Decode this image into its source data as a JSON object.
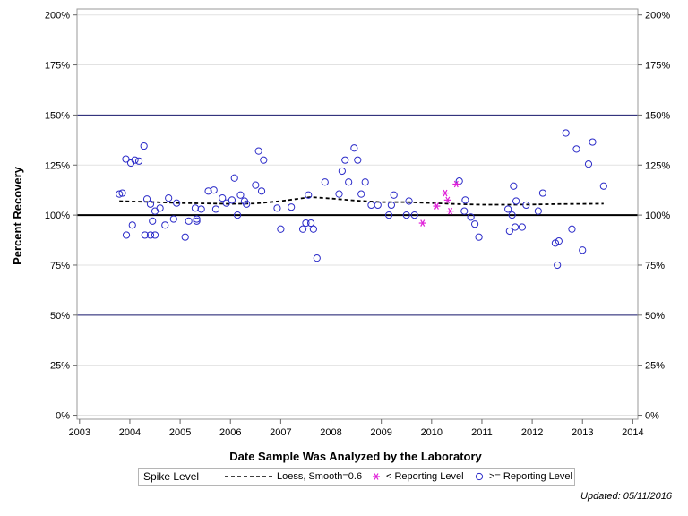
{
  "chart_data": {
    "type": "scatter",
    "title": "",
    "xlabel": "Date Sample Was Analyzed by the Laboratory",
    "ylabel": "Percent Recovery",
    "xlim": [
      2002.95,
      2014.1
    ],
    "ylim": [
      -2,
      203
    ],
    "x_ticks": [
      2003,
      2004,
      2005,
      2006,
      2007,
      2008,
      2009,
      2010,
      2011,
      2012,
      2013,
      2014
    ],
    "x_tick_labels": [
      "2003",
      "2004",
      "2005",
      "2006",
      "2007",
      "2008",
      "2009",
      "2010",
      "2011",
      "2012",
      "2013",
      "2014"
    ],
    "y_ticks": [
      0,
      25,
      50,
      75,
      100,
      125,
      150,
      175,
      200
    ],
    "y_tick_labels": [
      "0%",
      "25%",
      "50%",
      "75%",
      "100%",
      "125%",
      "150%",
      "175%",
      "200%"
    ],
    "reference_lines": {
      "spike_level": 100,
      "control_limits": [
        50,
        150
      ]
    },
    "colors": {
      "points": "#2a2ac8",
      "below_reporting": "#e020d8",
      "loess": "#000000",
      "control_line": "#1a1a6e",
      "grid": "#e2e2e2"
    },
    "series": [
      {
        "name": ">= Reporting Level",
        "marker": "circle",
        "points": [
          [
            2003.79,
            110.5
          ],
          [
            2003.85,
            111
          ],
          [
            2003.92,
            128
          ],
          [
            2003.93,
            90
          ],
          [
            2004.02,
            126
          ],
          [
            2004.05,
            95
          ],
          [
            2004.1,
            127.5
          ],
          [
            2004.18,
            127
          ],
          [
            2004.28,
            134.5
          ],
          [
            2004.3,
            90
          ],
          [
            2004.34,
            108
          ],
          [
            2004.41,
            105.5
          ],
          [
            2004.41,
            90
          ],
          [
            2004.45,
            97
          ],
          [
            2004.5,
            90
          ],
          [
            2004.5,
            102
          ],
          [
            2004.6,
            103.5
          ],
          [
            2004.7,
            95
          ],
          [
            2004.77,
            108.5
          ],
          [
            2004.87,
            98
          ],
          [
            2004.93,
            106
          ],
          [
            2005.1,
            89
          ],
          [
            2005.17,
            97
          ],
          [
            2005.3,
            103.5
          ],
          [
            2005.33,
            98
          ],
          [
            2005.33,
            97
          ],
          [
            2005.42,
            103
          ],
          [
            2005.56,
            112
          ],
          [
            2005.67,
            112.5
          ],
          [
            2005.71,
            103
          ],
          [
            2005.84,
            108.5
          ],
          [
            2005.92,
            106
          ],
          [
            2006.03,
            107.5
          ],
          [
            2006.08,
            118.5
          ],
          [
            2006.14,
            100
          ],
          [
            2006.2,
            110
          ],
          [
            2006.28,
            107
          ],
          [
            2006.32,
            105.5
          ],
          [
            2006.5,
            115
          ],
          [
            2006.56,
            132
          ],
          [
            2006.62,
            112
          ],
          [
            2006.66,
            127.5
          ],
          [
            2006.93,
            103.5
          ],
          [
            2007.0,
            93
          ],
          [
            2007.21,
            104
          ],
          [
            2007.44,
            93
          ],
          [
            2007.5,
            96
          ],
          [
            2007.55,
            110
          ],
          [
            2007.6,
            96
          ],
          [
            2007.65,
            93
          ],
          [
            2007.72,
            78.5
          ],
          [
            2007.88,
            116.5
          ],
          [
            2008.16,
            110.5
          ],
          [
            2008.22,
            122
          ],
          [
            2008.28,
            127.5
          ],
          [
            2008.35,
            116.5
          ],
          [
            2008.46,
            133.5
          ],
          [
            2008.53,
            127.5
          ],
          [
            2008.6,
            110.5
          ],
          [
            2008.68,
            116.5
          ],
          [
            2008.8,
            105
          ],
          [
            2008.93,
            105
          ],
          [
            2009.15,
            100
          ],
          [
            2009.2,
            105
          ],
          [
            2009.25,
            110
          ],
          [
            2009.5,
            100
          ],
          [
            2009.55,
            107
          ],
          [
            2009.66,
            100
          ],
          [
            2010.55,
            117
          ],
          [
            2010.65,
            102
          ],
          [
            2010.67,
            107.5
          ],
          [
            2010.78,
            99
          ],
          [
            2010.86,
            95.5
          ],
          [
            2010.94,
            89
          ],
          [
            2011.52,
            103
          ],
          [
            2011.55,
            92
          ],
          [
            2011.6,
            100
          ],
          [
            2011.63,
            114.5
          ],
          [
            2011.66,
            94
          ],
          [
            2011.68,
            107
          ],
          [
            2011.8,
            94
          ],
          [
            2011.88,
            105
          ],
          [
            2012.12,
            102
          ],
          [
            2012.21,
            111
          ],
          [
            2012.46,
            86
          ],
          [
            2012.5,
            75
          ],
          [
            2012.53,
            87
          ],
          [
            2012.67,
            141
          ],
          [
            2012.79,
            93
          ],
          [
            2012.88,
            133
          ],
          [
            2013.0,
            82.5
          ],
          [
            2013.12,
            125.5
          ],
          [
            2013.2,
            136.5
          ],
          [
            2013.42,
            114.5
          ]
        ]
      },
      {
        "name": "< Reporting Level",
        "marker": "asterisk",
        "points": [
          [
            2009.82,
            96
          ],
          [
            2010.1,
            104.5
          ],
          [
            2010.27,
            111
          ],
          [
            2010.32,
            107.5
          ],
          [
            2010.37,
            102
          ],
          [
            2010.49,
            115.5
          ]
        ]
      },
      {
        "name": "Loess, Smooth=0.6",
        "marker": "dashed-line",
        "points": [
          [
            2003.79,
            107
          ],
          [
            2004.5,
            106.5
          ],
          [
            2005.0,
            106
          ],
          [
            2005.6,
            105.8
          ],
          [
            2006.0,
            105.6
          ],
          [
            2006.5,
            105.8
          ],
          [
            2007.0,
            107
          ],
          [
            2007.6,
            109
          ],
          [
            2008.0,
            108.3
          ],
          [
            2008.5,
            107.2
          ],
          [
            2009.0,
            106.5
          ],
          [
            2009.5,
            106.5
          ],
          [
            2010.0,
            106
          ],
          [
            2010.5,
            105.5
          ],
          [
            2011.0,
            105.2
          ],
          [
            2011.5,
            105.2
          ],
          [
            2012.0,
            105.3
          ],
          [
            2012.5,
            105.5
          ],
          [
            2013.0,
            105.6
          ],
          [
            2013.42,
            105.7
          ]
        ]
      }
    ],
    "legend": {
      "title": "Spike Level",
      "placement": "bottom",
      "entries": [
        "Loess, Smooth=0.6",
        "< Reporting Level",
        ">= Reporting Level"
      ]
    }
  },
  "footer": {
    "updated": "Updated: 05/11/2016"
  }
}
